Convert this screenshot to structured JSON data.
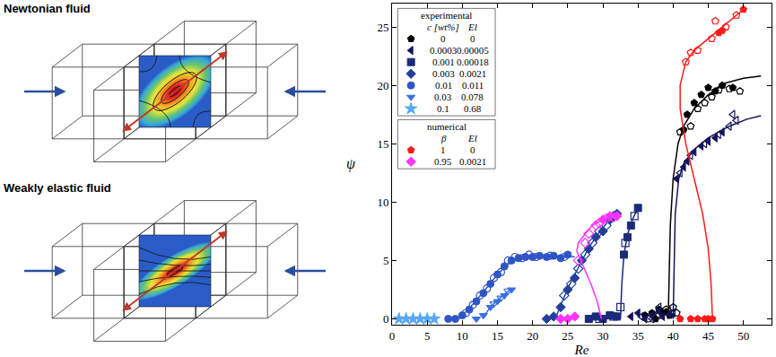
{
  "diagram": {
    "panels": [
      {
        "label": "Newtonian fluid"
      },
      {
        "label": "Weakly elastic fluid"
      }
    ]
  },
  "chart_data": {
    "type": "scatter",
    "x_label": "Re",
    "y_label": "ψ",
    "xlim": [
      0,
      54
    ],
    "xticks": [
      0,
      5,
      10,
      15,
      20,
      25,
      30,
      35,
      40,
      45,
      50
    ],
    "ylim": [
      -0.5,
      27
    ],
    "yticks": [
      0,
      5,
      10,
      15,
      20,
      25
    ],
    "grid": false,
    "legend_table": [
      {
        "title": "experimental",
        "columns": [
          "c [wt%]",
          "El"
        ]
      },
      {
        "title": "numerical",
        "columns": [
          "β",
          "El"
        ]
      }
    ],
    "series": [
      {
        "group": "experimental",
        "table_row": [
          "0",
          "0"
        ],
        "color": "#000000",
        "marker": "pentagon",
        "x": [
          36,
          37,
          37.5,
          38,
          38.5,
          39,
          39.5,
          41.5,
          42,
          43,
          44,
          45,
          46,
          47,
          48.5
        ],
        "values": [
          0.3,
          0.5,
          0,
          0.8,
          0.5,
          0.6,
          0.3,
          16.2,
          17.5,
          18.5,
          19.2,
          19.8,
          19.5,
          20,
          19.8
        ],
        "x_open": [
          36.5,
          38,
          39,
          40,
          40.5,
          41,
          42.5,
          43.5,
          44.5,
          45.5,
          46.5,
          48,
          49.5
        ],
        "values_open": [
          0,
          0.3,
          0.8,
          1,
          0.5,
          16,
          16.5,
          18,
          18.5,
          19,
          19.6,
          19.7,
          19.5
        ],
        "curve": {
          "x": [
            39.3,
            39.4,
            39.6,
            40,
            40.7,
            41.5,
            43,
            45,
            47.5,
            50,
            52.5
          ],
          "values": [
            0,
            3,
            8,
            12,
            15,
            16.5,
            18,
            19.2,
            20.2,
            20.6,
            20.8
          ]
        }
      },
      {
        "group": "experimental",
        "table_row": [
          "0.0003",
          "0.00005"
        ],
        "color": "#14145a",
        "marker": "triangle-left",
        "x": [
          34,
          35,
          36,
          37,
          38,
          38.5,
          39.5,
          40.5,
          41.5,
          42,
          43,
          44,
          45,
          46,
          47
        ],
        "values": [
          0.2,
          0.5,
          0,
          0.3,
          0.6,
          0.2,
          0.4,
          12,
          13,
          13.5,
          14.3,
          14.8,
          15.2,
          15.5,
          16
        ],
        "x_open": [
          35.5,
          37,
          38,
          40,
          41,
          42.5,
          44.5,
          46.5,
          48,
          48.5,
          49
        ],
        "values_open": [
          0.2,
          0,
          1,
          0.5,
          12.5,
          14,
          15,
          15.8,
          16.5,
          17.5,
          17
        ],
        "curve": {
          "x": [
            40,
            40.1,
            40.3,
            40.8,
            41.5,
            43,
            45,
            48,
            50.5,
            52.5
          ],
          "values": [
            0,
            4,
            9,
            12,
            13.3,
            14.5,
            15.5,
            16.5,
            17.1,
            17.4
          ]
        }
      },
      {
        "group": "experimental",
        "table_row": [
          "0.001",
          "0.00018"
        ],
        "color": "#1c2a7a",
        "marker": "square",
        "x": [
          28,
          29,
          30,
          31,
          32,
          33,
          33.5,
          34,
          35
        ],
        "values": [
          0,
          0.2,
          0,
          0.3,
          0.2,
          5.5,
          7,
          8,
          9.5
        ],
        "x_open": [
          29.5,
          31.5,
          32.5,
          33.2,
          34.5
        ],
        "values_open": [
          0,
          0.2,
          1,
          6.5,
          8.8
        ],
        "curve": {
          "x": [
            32.5,
            32.7,
            33,
            33.5,
            34.2,
            35
          ],
          "values": [
            0,
            3,
            5.5,
            7.2,
            8.5,
            9.5
          ]
        }
      },
      {
        "group": "experimental",
        "table_row": [
          "0.003",
          "0.0021"
        ],
        "color": "#233f9c",
        "marker": "diamond",
        "x": [
          22,
          23,
          24,
          25,
          26,
          27,
          28,
          29,
          30,
          31,
          32
        ],
        "values": [
          0,
          0.2,
          1,
          2.5,
          3.5,
          5,
          6,
          7,
          7.5,
          8.5,
          9
        ],
        "x_open": [
          24.5,
          25.5,
          26.5,
          27.5,
          28.5,
          29.5,
          30.5,
          31.5
        ],
        "values_open": [
          2,
          3,
          4.3,
          5.5,
          6.5,
          7.5,
          8,
          8.8
        ],
        "curve": {
          "x": [
            23.2,
            24,
            25,
            26,
            27,
            28,
            29,
            30,
            31,
            32
          ],
          "values": [
            0,
            1.2,
            2.6,
            3.8,
            5,
            6.1,
            7,
            7.8,
            8.5,
            9.2
          ]
        }
      },
      {
        "group": "experimental",
        "table_row": [
          "0.01",
          "0.011"
        ],
        "color": "#2f55c8",
        "marker": "circle",
        "x": [
          8,
          9,
          10,
          11,
          12,
          13,
          14,
          15,
          16,
          17,
          18,
          19,
          20,
          21,
          22,
          23,
          24,
          25
        ],
        "values": [
          0,
          0,
          0.3,
          0.8,
          1.5,
          2.2,
          3,
          3.8,
          4.5,
          5,
          5.2,
          5.3,
          5.3,
          5.4,
          5.3,
          5.4,
          5.2,
          5.5
        ],
        "x_open": [
          10.5,
          11.5,
          12.5,
          13.5,
          14.5,
          15.5,
          16.5,
          17.5,
          18.5,
          19.5,
          20.5,
          22.5,
          24.5
        ],
        "values_open": [
          0.5,
          1.2,
          2,
          2.6,
          3.5,
          4,
          5,
          5.3,
          5.2,
          5.5,
          5.3,
          5.4,
          5.3
        ],
        "curve": {
          "x": [
            9.5,
            11,
            13,
            15,
            17,
            19,
            22,
            25,
            26
          ],
          "values": [
            0,
            0.9,
            2.3,
            3.8,
            5,
            5.3,
            5.35,
            5.4,
            5.3
          ]
        }
      },
      {
        "group": "experimental",
        "table_row": [
          "0.03",
          "0.078"
        ],
        "color": "#3a6fe0",
        "marker": "triangle-down",
        "x": [
          12,
          13,
          14,
          15,
          16,
          17
        ],
        "values": [
          0,
          0.3,
          1,
          1.5,
          2,
          2.5
        ],
        "x_open": [
          14.5,
          15.5,
          16.5
        ],
        "values_open": [
          1.3,
          1.8,
          2.4
        ],
        "curve": {
          "x": [
            13,
            14,
            15,
            16,
            17
          ],
          "values": [
            0.2,
            1,
            1.6,
            2.1,
            2.6
          ]
        }
      },
      {
        "group": "experimental",
        "table_row": [
          "0.1",
          "0.68"
        ],
        "color": "#5aa8f0",
        "marker": "star",
        "x": [
          1,
          2,
          3,
          4,
          5,
          6
        ],
        "values": [
          0,
          0,
          0,
          0,
          0,
          0
        ]
      },
      {
        "group": "numerical",
        "table_row": [
          "1",
          "0"
        ],
        "color": "#ff1a1a",
        "marker": "pentagon",
        "x": [
          41,
          42.5,
          43.5,
          44.5,
          45,
          45.6,
          46.5,
          47,
          50
        ],
        "values": [
          0,
          0,
          0,
          0,
          0,
          0,
          24.5,
          24.7,
          26.5
        ],
        "x_open": [
          41.8,
          42.5,
          43.5,
          45.5,
          46,
          47.5,
          49
        ],
        "values_open": [
          22,
          22.8,
          23,
          24,
          25.5,
          25,
          26
        ],
        "curve": {
          "x": [
            45.6,
            45.4,
            45,
            44.2,
            43,
            41.8,
            41,
            41,
            41.8,
            43,
            45,
            47,
            50
          ],
          "values": [
            0,
            3,
            6,
            9,
            12,
            15,
            18,
            20,
            22,
            23,
            24,
            25,
            26.5
          ]
        }
      },
      {
        "group": "numerical",
        "table_row": [
          "0.95",
          "0.0021"
        ],
        "color": "#ff33ff",
        "marker": "diamond",
        "x": [
          24,
          25,
          26,
          30,
          31,
          32
        ],
        "values": [
          0,
          0,
          0.2,
          8.5,
          8.8,
          8.8
        ],
        "x_open": [
          26.5,
          27.5,
          28,
          29,
          29.5,
          30.5,
          31.5
        ],
        "values_open": [
          5,
          6.5,
          7.3,
          8,
          8.2,
          8.6,
          8.7
        ],
        "curve": {
          "x": [
            29.8,
            29.2,
            28.3,
            27.2,
            26.3,
            26.5,
            27.5,
            28.5,
            30,
            32
          ],
          "values": [
            0,
            1.5,
            3,
            4.5,
            5.8,
            6.5,
            7.3,
            8,
            8.5,
            8.9
          ]
        }
      }
    ]
  }
}
